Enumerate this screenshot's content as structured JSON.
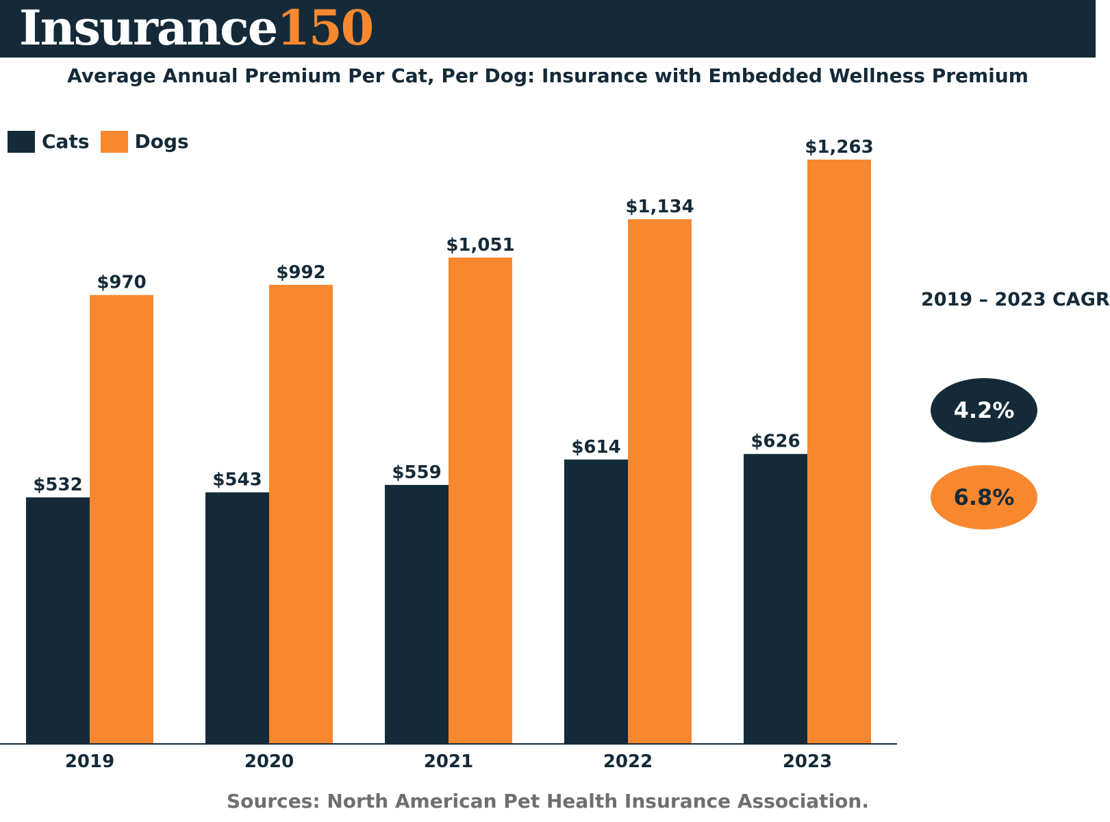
{
  "header": {
    "logo_word": "Insurance",
    "logo_number": "150"
  },
  "chart_data": {
    "type": "bar",
    "title": "Average Annual Premium Per Cat, Per Dog: Insurance with Embedded Wellness Premium",
    "xlabel": "",
    "ylabel": "",
    "categories": [
      "2019",
      "2020",
      "2021",
      "2022",
      "2023"
    ],
    "series": [
      {
        "name": "Cats",
        "color": "#142a38",
        "values": [
          532,
          543,
          559,
          614,
          626
        ],
        "labels": [
          "$532",
          "$543",
          "$559",
          "$614",
          "$626"
        ]
      },
      {
        "name": "Dogs",
        "color": "#f7882f",
        "values": [
          970,
          992,
          1051,
          1134,
          1263
        ],
        "labels": [
          "$970",
          "$992",
          "$1,051",
          "$1,134",
          "$1,263"
        ]
      }
    ],
    "ylim": [
      0,
      1300
    ],
    "grid": false,
    "legend_position": "top-left"
  },
  "cagr": {
    "title": "2019 – 2023 CAGR",
    "cats_value": "4.2%",
    "dogs_value": "6.8%"
  },
  "source": "Sources: North American Pet Health Insurance Association.",
  "colors": {
    "navy": "#142a38",
    "orange": "#f7882f",
    "source_gray": "#6f6f6f"
  }
}
